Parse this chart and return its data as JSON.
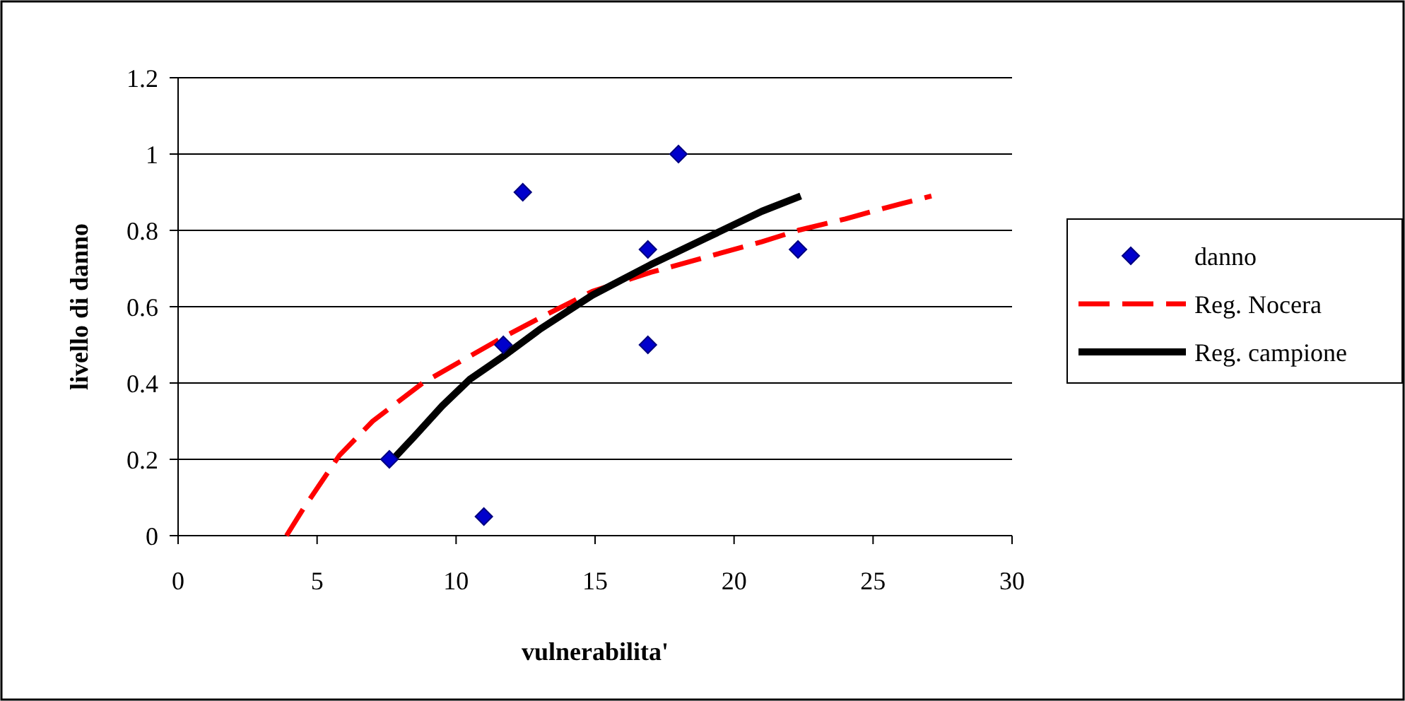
{
  "chart_data": {
    "type": "scatter",
    "xlabel": "vulnerabilita'",
    "ylabel": "livello di danno",
    "xlim": [
      0,
      30
    ],
    "xticks": [
      0,
      5,
      10,
      15,
      20,
      25,
      30
    ],
    "ylim": [
      0,
      1.2
    ],
    "yticks": [
      0,
      0.2,
      0.4,
      0.6,
      0.8,
      1,
      1.2
    ],
    "grid": "y",
    "legend": "right",
    "series": [
      {
        "name": "danno",
        "color": "#0000cc",
        "marker": "diamond",
        "x": [
          7.6,
          11,
          11.7,
          12.4,
          16.9,
          16.9,
          18,
          22.3
        ],
        "values": [
          0.2,
          0.05,
          0.5,
          0.9,
          0.75,
          0.5,
          1,
          0.75
        ]
      },
      {
        "name": "Reg. Nocera",
        "type": "line",
        "color": "#ff0000",
        "line_style": "dashed",
        "marker": "none",
        "x": [
          3.9,
          4.5,
          5.8,
          7,
          8.8,
          10,
          11.7,
          13,
          14.9,
          17,
          19,
          21,
          22.3,
          24,
          25.5,
          27.1
        ],
        "values": [
          0,
          0.07,
          0.21,
          0.3,
          0.4,
          0.45,
          0.52,
          0.57,
          0.64,
          0.69,
          0.73,
          0.77,
          0.8,
          0.83,
          0.86,
          0.89
        ]
      },
      {
        "name": "Reg. campione",
        "type": "line",
        "color": "#000000",
        "line_style": "solid",
        "marker": "none",
        "x": [
          7.6,
          8.5,
          9.5,
          10.5,
          11.7,
          13,
          14.9,
          17,
          19,
          21,
          22.4
        ],
        "values": [
          0.19,
          0.26,
          0.34,
          0.41,
          0.47,
          0.54,
          0.63,
          0.71,
          0.78,
          0.85,
          0.89
        ]
      }
    ]
  }
}
